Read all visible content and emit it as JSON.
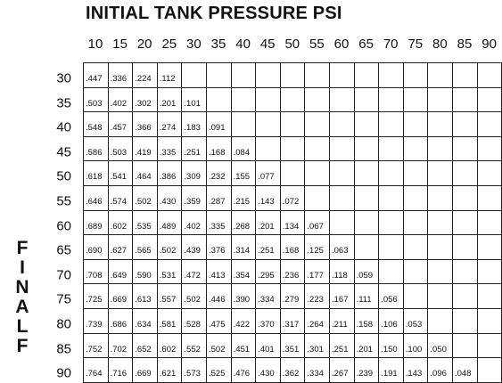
{
  "title": "INITIAL TANK PRESSURE PSI",
  "vertical_label": [
    "F",
    "I",
    "N",
    "A",
    "L",
    "F"
  ],
  "columns": [
    "10",
    "15",
    "20",
    "25",
    "30",
    "35",
    "40",
    "45",
    "50",
    "55",
    "60",
    "65",
    "70",
    "75",
    "80",
    "85",
    "90"
  ],
  "rows": [
    {
      "label": "30",
      "values": [
        ".447",
        ".336",
        ".224",
        ".112"
      ]
    },
    {
      "label": "35",
      "values": [
        ".503",
        ".402",
        ".302",
        ".201",
        ".101"
      ]
    },
    {
      "label": "40",
      "values": [
        ".548",
        ".457",
        ".366",
        ".274",
        ".183",
        ".091"
      ]
    },
    {
      "label": "45",
      "values": [
        ".586",
        ".503",
        ".419",
        ".335",
        ".251",
        ".168",
        ".084"
      ]
    },
    {
      "label": "50",
      "values": [
        ".618",
        ".541",
        ".464",
        ".386",
        ".309",
        ".232",
        ".155",
        ".077"
      ]
    },
    {
      "label": "55",
      "values": [
        ".646",
        ".574",
        ".502",
        ".430",
        ".359",
        ".287",
        ".215",
        ".143",
        ".072"
      ]
    },
    {
      "label": "60",
      "values": [
        ".689",
        ".602",
        ".535",
        ".489",
        ".402",
        ".335",
        ".268",
        ".201",
        ".134",
        ".067"
      ]
    },
    {
      "label": "65",
      "values": [
        ".690",
        ".627",
        ".565",
        ".502",
        ".439",
        ".376",
        ".314",
        ".251",
        ".168",
        ".125",
        ".063"
      ]
    },
    {
      "label": "70",
      "values": [
        ".708",
        ".649",
        ".590",
        ".531",
        ".472",
        ".413",
        ".354",
        ".295",
        ".236",
        ".177",
        ".118",
        ".059"
      ]
    },
    {
      "label": "75",
      "values": [
        ".725",
        ".669",
        ".613",
        ".557",
        ".502",
        ".446",
        ".390",
        ".334",
        ".279",
        ".223",
        ".167",
        ".111",
        ".056"
      ]
    },
    {
      "label": "80",
      "values": [
        ".739",
        ".686",
        ".634",
        ".581",
        ".528",
        ".475",
        ".422",
        ".370",
        ".317",
        ".264",
        ".211",
        ".158",
        ".106",
        ".053"
      ]
    },
    {
      "label": "85",
      "values": [
        ".752",
        ".702",
        ".652",
        ".602",
        ".552",
        ".502",
        ".451",
        ".401",
        ".351",
        ".301",
        ".251",
        ".201",
        ".150",
        ".100",
        ".050"
      ]
    },
    {
      "label": "90",
      "values": [
        ".764",
        ".716",
        ".669",
        ".621",
        ".573",
        ".525",
        ".476",
        ".430",
        ".362",
        ".334",
        ".267",
        ".239",
        ".191",
        ".143",
        ".096",
        ".048"
      ]
    }
  ]
}
